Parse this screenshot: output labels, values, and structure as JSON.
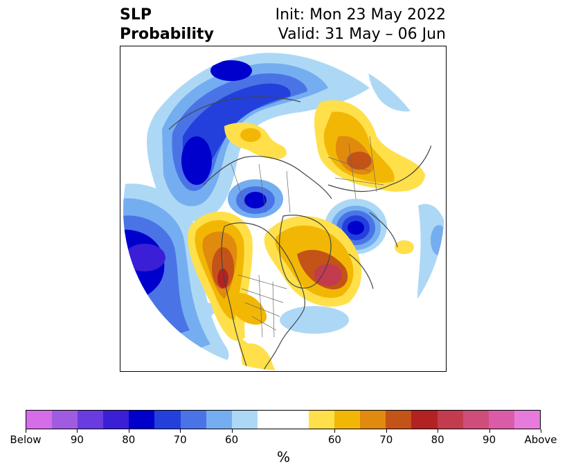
{
  "title": {
    "left_line1": "SLP",
    "left_line2": "Probability",
    "right_line1": "Init: Mon 23 May 2022",
    "right_line2": "Valid: 31 May – 06 Jun"
  },
  "map": {
    "projection": "north-polar-stereographic",
    "regions": [
      {
        "name": "north-pacific-aleutian-below",
        "category": "Below",
        "peak_percent": 85,
        "color": "#3a1fd6"
      },
      {
        "name": "east-siberia-arctic-below",
        "category": "Below",
        "peak_percent": 80,
        "color": "#0000cd"
      },
      {
        "name": "laptev-kara-below",
        "category": "Below",
        "peak_percent": 80,
        "color": "#0000cd"
      },
      {
        "name": "barents-scandinavia-below",
        "category": "Below",
        "peak_percent": 75,
        "color": "#2340dc"
      },
      {
        "name": "greenland-above",
        "category": "Above",
        "peak_percent": 75,
        "color": "#c23b4f"
      },
      {
        "name": "western-north-america-above",
        "category": "Above",
        "peak_percent": 75,
        "color": "#b22222"
      },
      {
        "name": "west-siberia-urals-above",
        "category": "Above",
        "peak_percent": 70,
        "color": "#c45318"
      },
      {
        "name": "central-siberia-above",
        "category": "Above",
        "peak_percent": 60,
        "color": "#f2b705"
      },
      {
        "name": "mexico-above",
        "category": "Above",
        "peak_percent": 60,
        "color": "#f2b705"
      }
    ]
  },
  "colorbar": {
    "colors": [
      "#d56de8",
      "#a05ce0",
      "#6a3be0",
      "#3a1fd6",
      "#0000cd",
      "#2340dc",
      "#4a74e6",
      "#74aef0",
      "#add8f5",
      "#ffffff",
      "#ffffff",
      "#ffe04a",
      "#f2b705",
      "#e08a0e",
      "#c45318",
      "#b22222",
      "#c23b4f",
      "#cf4d7a",
      "#da5ca8",
      "#e77bdc"
    ],
    "tick_labels": [
      "Below",
      "90",
      "80",
      "70",
      "60",
      "60",
      "70",
      "80",
      "90",
      "Above"
    ],
    "unit_label": "%"
  }
}
